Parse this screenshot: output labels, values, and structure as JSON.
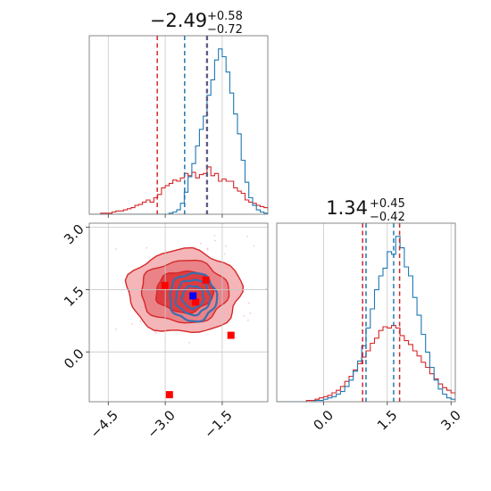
{
  "chart_data": [
    {
      "type": "histogram",
      "panel": "top-left",
      "title": {
        "value": "−2.49",
        "plus": "+0.58",
        "minus": "−0.72"
      },
      "xlim": [
        -5.0,
        -0.3
      ],
      "grid": true,
      "series": [
        {
          "name": "",
          "color": "#d62728",
          "bin_start": -5.0,
          "bin_width": 0.1,
          "values": [
            0,
            0,
            0,
            1,
            1,
            1,
            2,
            3,
            3,
            4,
            5,
            6,
            8,
            9,
            11,
            13,
            11,
            15,
            18,
            24,
            26,
            28,
            31,
            30,
            33,
            37,
            35,
            38,
            33,
            36,
            37,
            43,
            35,
            37,
            30,
            32,
            30,
            30,
            24,
            21,
            19,
            13,
            11,
            10,
            8,
            7,
            6,
            5,
            3,
            2,
            1
          ]
        },
        {
          "name": "",
          "color": "#1f77b4",
          "bin_start": -5.0,
          "bin_width": 0.1,
          "values": [
            0,
            0,
            0,
            0,
            0,
            0,
            0,
            0,
            0,
            0,
            0,
            0,
            0,
            0,
            0,
            0,
            0,
            0,
            0,
            0,
            0,
            1,
            2,
            4,
            10,
            20,
            34,
            46,
            62,
            77,
            89,
            108,
            122,
            140,
            150,
            143,
            129,
            110,
            91,
            73,
            49,
            29,
            15,
            8,
            4,
            2,
            1,
            0,
            0,
            0
          ]
        }
      ],
      "vlines": [
        {
          "x": -3.21,
          "color": "#d62728"
        },
        {
          "x": -1.91,
          "color": "#d62728"
        },
        {
          "x": -2.49,
          "color": "#1f77b4"
        },
        {
          "x": -1.89,
          "color": "#1f77b4"
        }
      ]
    },
    {
      "type": "contour",
      "panel": "bottom-left",
      "xlim": [
        -5.0,
        -0.3
      ],
      "ylim": [
        -1.2,
        3.1
      ],
      "xticks": [
        "−4.5",
        "−3.0",
        "−1.5"
      ],
      "yticks": [
        "0.0",
        "1.5",
        "3.0"
      ],
      "xtick_values": [
        -4.5,
        -3.0,
        -1.5
      ],
      "ytick_values": [
        0.0,
        1.5,
        3.0
      ],
      "grid": true,
      "red_contours": {
        "center": [
          -2.5,
          1.45
        ],
        "levels": [
          {
            "rx": 1.5,
            "ry": 1.0,
            "fill": "#f4b6b8"
          },
          {
            "rx": 1.15,
            "ry": 0.75,
            "fill": "#ea8388"
          },
          {
            "rx": 0.75,
            "ry": 0.5,
            "fill": "#de3c3f"
          }
        ]
      },
      "blue_contours": {
        "center": [
          -2.27,
          1.32
        ],
        "levels": [
          {
            "rx": 0.62,
            "ry": 0.58
          },
          {
            "rx": 0.45,
            "ry": 0.42
          },
          {
            "rx": 0.28,
            "ry": 0.27
          }
        ]
      },
      "markers": [
        {
          "x": -3.01,
          "y": 1.6,
          "color": "#ff0000"
        },
        {
          "x": -1.93,
          "y": 1.73,
          "color": "#ff0000"
        },
        {
          "x": -2.2,
          "y": 1.2,
          "color": "#ff0000"
        },
        {
          "x": -1.27,
          "y": 0.4,
          "color": "#ff0000"
        },
        {
          "x": -2.89,
          "y": -1.03,
          "color": "#ff0000"
        },
        {
          "x": -2.27,
          "y": 1.35,
          "color": "#0000ff"
        }
      ]
    },
    {
      "type": "histogram",
      "panel": "bottom-right",
      "title": {
        "value": "1.34",
        "plus": "+0.45",
        "minus": "−0.42"
      },
      "xlim": [
        -1.1,
        3.1
      ],
      "xticks": [
        "0.0",
        "1.5",
        "3.0"
      ],
      "xtick_values": [
        0.0,
        1.5,
        3.0
      ],
      "grid": true,
      "series": [
        {
          "name": "",
          "color": "#d62728",
          "bin_start": -1.1,
          "bin_width": 0.1,
          "values": [
            0,
            0,
            0,
            0,
            0,
            0,
            0,
            1,
            1,
            2,
            3,
            4,
            5,
            7,
            9,
            12,
            16,
            20,
            25,
            30,
            35,
            40,
            46,
            50,
            56,
            59,
            58,
            60,
            58,
            52,
            48,
            45,
            40,
            36,
            31,
            27,
            22,
            18,
            14,
            11,
            9,
            7,
            5,
            3,
            2,
            1,
            0,
            0,
            0,
            0
          ]
        },
        {
          "name": "",
          "color": "#1f77b4",
          "bin_start": -1.1,
          "bin_width": 0.1,
          "values": [
            0,
            0,
            0,
            0,
            0,
            0,
            0,
            0,
            0,
            1,
            1,
            2,
            3,
            4,
            6,
            8,
            12,
            17,
            24,
            32,
            44,
            58,
            73,
            88,
            99,
            105,
            118,
            116,
            130,
            121,
            106,
            99,
            82,
            68,
            53,
            39,
            27,
            17,
            10,
            6,
            3,
            2,
            1,
            1,
            0,
            0,
            0,
            0,
            0,
            0
          ]
        }
      ],
      "vlines": [
        {
          "x": 0.92,
          "color": "#d62728"
        },
        {
          "x": 1.79,
          "color": "#d62728"
        },
        {
          "x": 1.0,
          "color": "#1f77b4"
        },
        {
          "x": 1.65,
          "color": "#1f77b4"
        }
      ]
    }
  ]
}
